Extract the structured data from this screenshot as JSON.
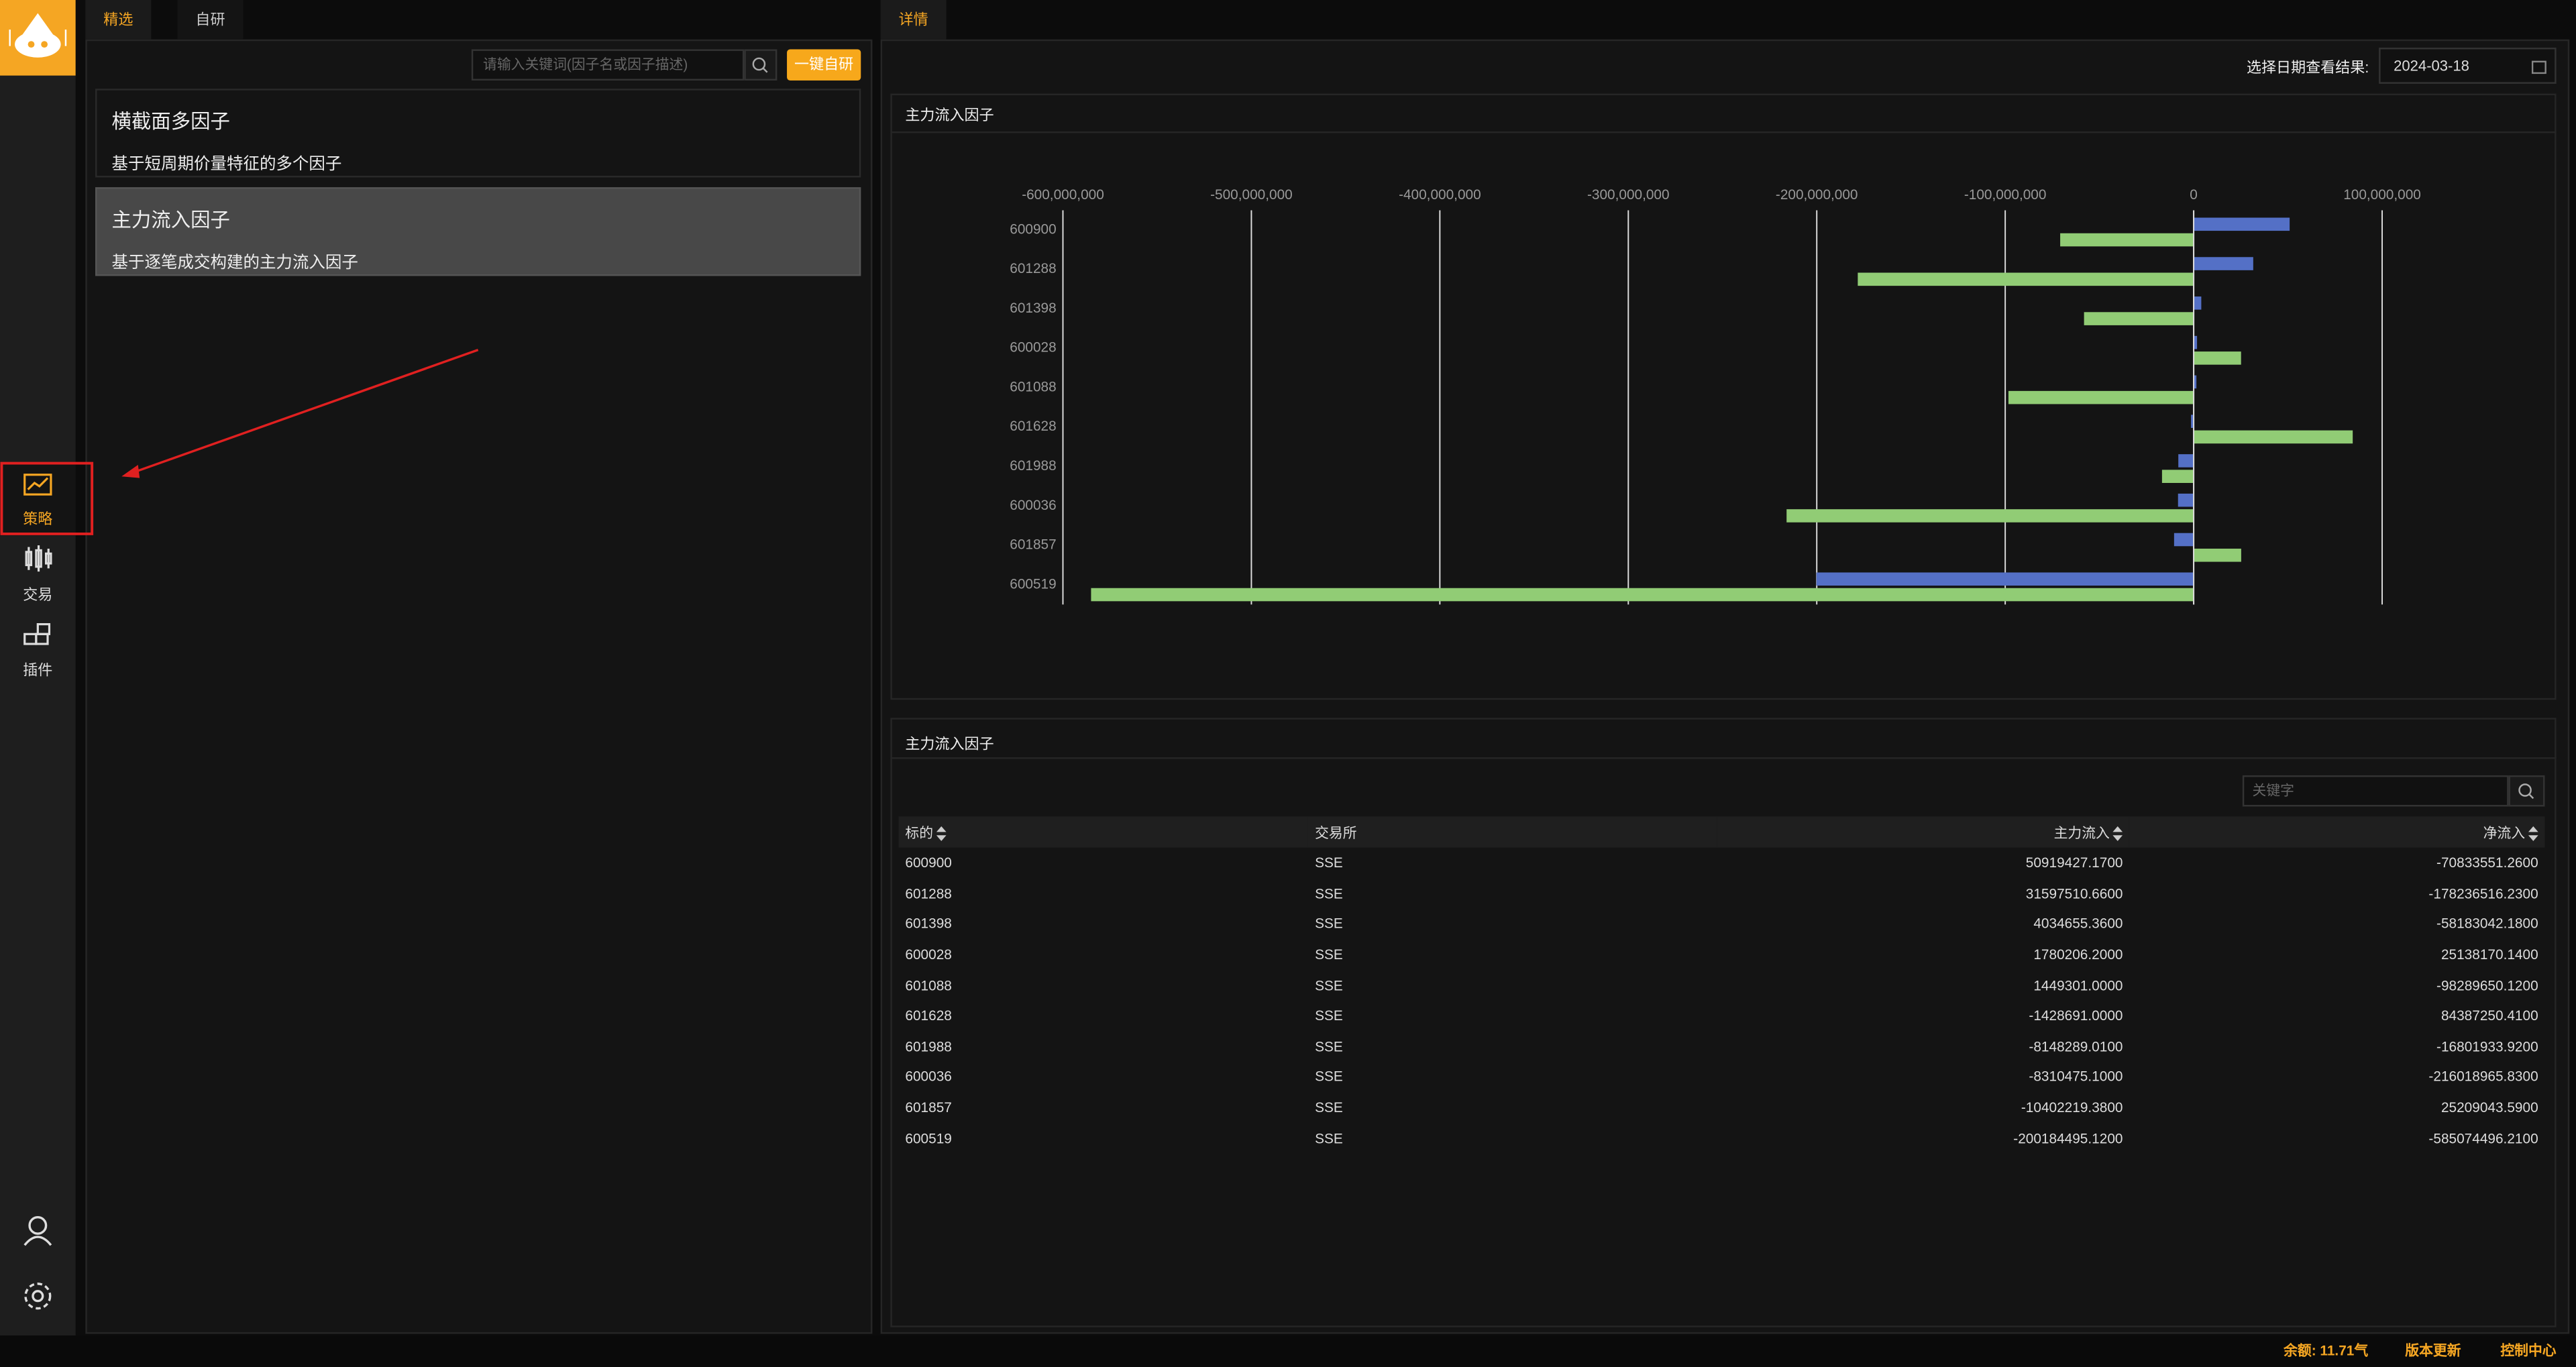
{
  "sidebar": {
    "items": [
      {
        "label": "策略"
      },
      {
        "label": "交易"
      },
      {
        "label": "插件"
      }
    ]
  },
  "left_panel": {
    "tabs": [
      "精选",
      "自研"
    ],
    "search_placeholder": "请输入关键词(因子名或因子描述)",
    "button": "一键自研",
    "cards": [
      {
        "title": "横截面多因子",
        "description": "基于短周期价量特征的多个因子"
      },
      {
        "title": "主力流入因子",
        "description": "基于逐笔成交构建的主力流入因子"
      }
    ]
  },
  "right_panel": {
    "tab": "详情",
    "date_label": "选择日期查看结果:",
    "date": "2024-03-18"
  },
  "chart_data": {
    "type": "hbar",
    "title": "主力流入因子",
    "categories": [
      "600900",
      "601288",
      "601398",
      "600028",
      "601088",
      "601628",
      "601988",
      "600036",
      "601857",
      "600519"
    ],
    "series": [
      {
        "color": "#5470c6",
        "values": [
          50919427.17,
          31597510.66,
          4034655.36,
          1780206.2,
          1449301,
          -1428691,
          -8148289.01,
          -8310475.1,
          -10402219.38,
          -200184495.12
        ]
      },
      {
        "color": "#91cc75",
        "values": [
          -70833551.26,
          -178236516.23,
          -58183042.18,
          25138170.14,
          -98289650.12,
          84387250.41,
          -16801933.92,
          -216018965.83,
          25209043.59,
          -585074496.21
        ]
      }
    ],
    "xlim": [
      -600000000,
      100000000
    ],
    "xticks": [
      {
        "value": -600000000,
        "label": "-600,000,000"
      },
      {
        "value": -500000000,
        "label": "-500,000,000"
      },
      {
        "value": -400000000,
        "label": "-400,000,000"
      },
      {
        "value": -300000000,
        "label": "-300,000,000"
      },
      {
        "value": -200000000,
        "label": "-200,000,000"
      },
      {
        "value": -100000000,
        "label": "-100,000,000"
      },
      0,
      {
        "value": 100000000,
        "label": "100,000,000"
      }
    ],
    "grid": true
  },
  "table": {
    "title": "主力流入因子",
    "search_placeholder": "关键字",
    "columns": [
      "标的",
      "交易所",
      "主力流入",
      "净流入"
    ],
    "rows": [
      [
        "600900",
        "SSE",
        "50919427.1700",
        "-70833551.2600"
      ],
      [
        "601288",
        "SSE",
        "31597510.6600",
        "-178236516.2300"
      ],
      [
        "601398",
        "SSE",
        "4034655.3600",
        "-58183042.1800"
      ],
      [
        "600028",
        "SSE",
        "1780206.2000",
        "25138170.1400"
      ],
      [
        "601088",
        "SSE",
        "1449301.0000",
        "-98289650.1200"
      ],
      [
        "601628",
        "SSE",
        "-1428691.0000",
        "84387250.4100"
      ],
      [
        "601988",
        "SSE",
        "-8148289.0100",
        "-16801933.9200"
      ],
      [
        "600036",
        "SSE",
        "-8310475.1000",
        "-216018965.8300"
      ],
      [
        "601857",
        "SSE",
        "-10402219.3800",
        "25209043.5900"
      ],
      [
        "600519",
        "SSE",
        "-200184495.1200",
        "-585074496.2100"
      ]
    ]
  },
  "status_bar": {
    "balance": "余额: 11.71气",
    "update": "版本更新",
    "control": "控制中心"
  }
}
